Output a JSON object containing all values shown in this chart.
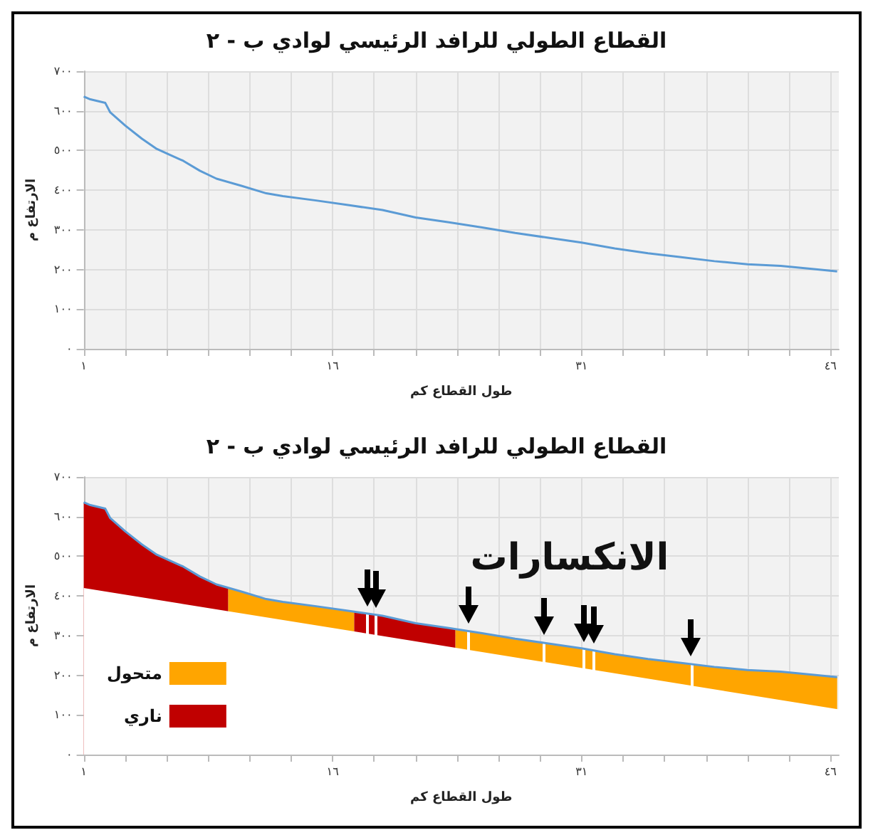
{
  "chart_data": [
    {
      "type": "line",
      "title": "القطاع الطولي للرافد الرئيسي لوادي ب - ٢",
      "xlabel": "طول القطاع كم",
      "ylabel": "الارتفاع م",
      "marker": "none",
      "grid": true,
      "x": [
        1,
        1.4,
        2.3,
        2.6,
        3.5,
        4.5,
        5.4,
        6.2,
        7,
        8,
        9,
        10.5,
        12,
        13,
        15,
        17,
        19,
        21,
        23,
        25,
        27,
        29,
        31,
        33,
        35,
        37,
        39,
        41,
        43,
        45,
        46.4
      ],
      "series": [
        {
          "color": "#5b9bd5",
          "values": [
            636,
            629,
            620,
            596,
            563,
            530,
            504,
            489,
            474,
            449,
            429,
            411,
            392,
            385,
            374,
            362,
            350,
            331,
            319,
            306,
            292,
            280,
            268,
            253,
            241,
            231,
            221,
            213,
            209,
            201,
            195
          ]
        }
      ],
      "xlim": [
        1,
        46.5
      ],
      "ylim": [
        0,
        700
      ],
      "xticks": [
        {
          "value": 1,
          "label": "١"
        },
        {
          "value": 3.5,
          "label": null
        },
        {
          "value": 6,
          "label": null
        },
        {
          "value": 8.5,
          "label": null
        },
        {
          "value": 11,
          "label": null
        },
        {
          "value": 13.5,
          "label": null
        },
        {
          "value": 16,
          "label": "١٦"
        },
        {
          "value": 18.5,
          "label": null
        },
        {
          "value": 21,
          "label": null
        },
        {
          "value": 23.5,
          "label": null
        },
        {
          "value": 26,
          "label": null
        },
        {
          "value": 28.5,
          "label": null
        },
        {
          "value": 31,
          "label": "٣١"
        },
        {
          "value": 33.5,
          "label": null
        },
        {
          "value": 36,
          "label": null
        },
        {
          "value": 38.5,
          "label": null
        },
        {
          "value": 41,
          "label": null
        },
        {
          "value": 43.5,
          "label": null
        },
        {
          "value": 46,
          "label": "٤٦"
        }
      ],
      "yticks": [
        {
          "value": 0,
          "label": "٠"
        },
        {
          "value": 100,
          "label": "١٠٠"
        },
        {
          "value": 200,
          "label": "٢٠٠"
        },
        {
          "value": 300,
          "label": "٣٠٠"
        },
        {
          "value": 400,
          "label": "٤٠٠"
        },
        {
          "value": 500,
          "label": "٥٠٠"
        },
        {
          "value": 600,
          "label": "٦٠٠"
        },
        {
          "value": 700,
          "label": "٧٠٠"
        }
      ]
    },
    {
      "type": "area",
      "title": "القطاع الطولي للرافد الرئيسي لوادي ب - ٢",
      "xlabel": "طول القطاع كم",
      "ylabel": "الارتفاع م",
      "marker": "none",
      "grid": true,
      "legend": "left",
      "series": [
        {
          "name": "متحول",
          "color": "#ffa500",
          "x": [
            9.7,
            10.5,
            12,
            13,
            15,
            17,
            17.3
          ],
          "values": [
            420,
            411,
            392,
            385,
            374,
            362,
            360
          ]
        },
        {
          "name": "ناري",
          "color": "#c00000",
          "x": [
            1,
            1.4,
            2.3,
            2.6,
            3.5,
            4.5,
            5.4,
            6.2,
            7,
            8,
            9,
            9.7
          ],
          "values": [
            636,
            629,
            620,
            596,
            563,
            530,
            504,
            489,
            474,
            449,
            429,
            420
          ]
        },
        {
          "color": "#c00000",
          "x": [
            17.3,
            19,
            21,
            23,
            23.4
          ],
          "values": [
            360,
            350,
            331,
            319,
            316
          ]
        },
        {
          "color": "#ffa500",
          "x": [
            23.4,
            25,
            27,
            29,
            31,
            33,
            35,
            37,
            39,
            41,
            43,
            45,
            46.4
          ],
          "values": [
            316,
            306,
            292,
            280,
            268,
            253,
            241,
            231,
            221,
            213,
            209,
            201,
            195
          ]
        },
        {
          "color": "#ffffff",
          "x": [
            1,
            46.5
          ],
          "values": [
            420,
            114
          ]
        },
        {
          "type": "line",
          "color": "#5b9bd5",
          "x": [
            1,
            1.4,
            2.3,
            2.6,
            3.5,
            4.5,
            5.4,
            6.2,
            7,
            8,
            9,
            10.5,
            12,
            13,
            15,
            17,
            19,
            21,
            23,
            25,
            27,
            29,
            31,
            33,
            35,
            37,
            39,
            41,
            43,
            45,
            46.4
          ],
          "values": [
            636,
            629,
            620,
            596,
            563,
            530,
            504,
            489,
            474,
            449,
            429,
            411,
            392,
            385,
            374,
            362,
            350,
            331,
            319,
            306,
            292,
            280,
            268,
            253,
            241,
            231,
            221,
            213,
            209,
            201,
            195
          ]
        }
      ],
      "ref_lines": [
        {
          "axis": "x",
          "value": 18.1,
          "color": "#ffffff"
        },
        {
          "axis": "x",
          "value": 18.6,
          "color": "#ffffff"
        },
        {
          "axis": "x",
          "value": 24.2,
          "color": "#ffffff"
        },
        {
          "axis": "x",
          "value": 28.7,
          "color": "#ffffff"
        },
        {
          "axis": "x",
          "value": 31.1,
          "color": "#ffffff"
        },
        {
          "axis": "x",
          "value": 31.7,
          "color": "#ffffff"
        },
        {
          "axis": "x",
          "value": 37.6,
          "color": "#ffffff"
        }
      ],
      "annotations": [
        "الانكسارات"
      ],
      "xlim": [
        1,
        46.5
      ],
      "ylim": [
        0,
        700
      ],
      "xticks": [
        {
          "value": 1,
          "label": "١"
        },
        {
          "value": 3.5,
          "label": null
        },
        {
          "value": 6,
          "label": null
        },
        {
          "value": 8.5,
          "label": null
        },
        {
          "value": 11,
          "label": null
        },
        {
          "value": 13.5,
          "label": null
        },
        {
          "value": 16,
          "label": "١٦"
        },
        {
          "value": 18.5,
          "label": null
        },
        {
          "value": 21,
          "label": null
        },
        {
          "value": 23.5,
          "label": null
        },
        {
          "value": 26,
          "label": null
        },
        {
          "value": 28.5,
          "label": null
        },
        {
          "value": 31,
          "label": "٣١"
        },
        {
          "value": 33.5,
          "label": null
        },
        {
          "value": 36,
          "label": null
        },
        {
          "value": 38.5,
          "label": null
        },
        {
          "value": 41,
          "label": null
        },
        {
          "value": 43.5,
          "label": null
        },
        {
          "value": 46,
          "label": "٤٦"
        }
      ],
      "yticks": [
        {
          "value": 0,
          "label": "٠"
        },
        {
          "value": 100,
          "label": "١٠٠"
        },
        {
          "value": 200,
          "label": "٢٠٠"
        },
        {
          "value": 300,
          "label": "٣٠٠"
        },
        {
          "value": 400,
          "label": "٤٠٠"
        },
        {
          "value": 500,
          "label": "٥٠٠"
        },
        {
          "value": 600,
          "label": "٦٠٠"
        },
        {
          "value": 700,
          "label": "٧٠٠"
        }
      ]
    }
  ]
}
